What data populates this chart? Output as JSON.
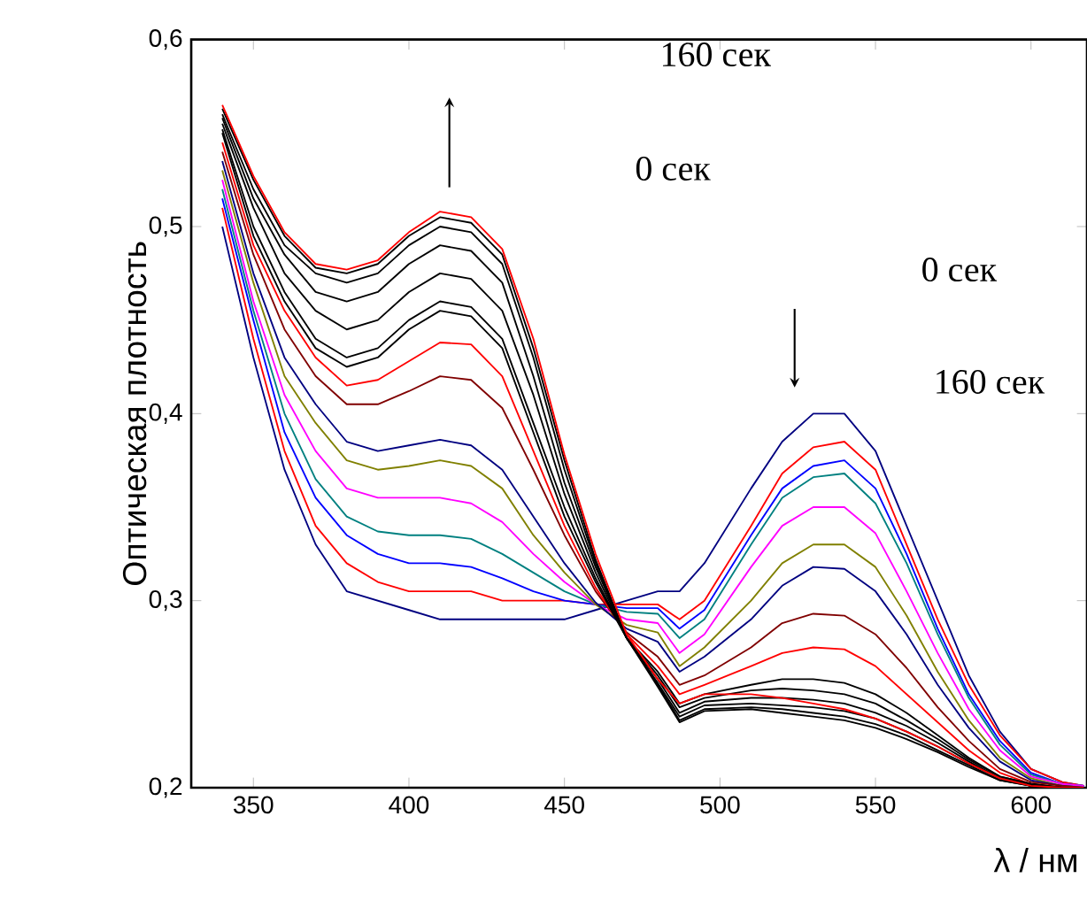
{
  "chart_data": {
    "type": "line",
    "xlabel": "λ / нм",
    "ylabel": "Оптическая плотность",
    "annotations": [
      "160 сек",
      "0 сек",
      "0 сек",
      "160 сек"
    ],
    "xlim": [
      330,
      618
    ],
    "ylim": [
      0.2,
      0.6
    ],
    "xticks": [
      350,
      400,
      450,
      500,
      550,
      600
    ],
    "yticks": [
      {
        "value": 0.2,
        "label": "0,2"
      },
      {
        "value": 0.3,
        "label": "0,3"
      },
      {
        "value": 0.4,
        "label": "0,4"
      },
      {
        "value": 0.5,
        "label": "0,5"
      },
      {
        "value": 0.6,
        "label": "0,6"
      }
    ],
    "x": [
      340,
      350,
      360,
      370,
      380,
      390,
      400,
      410,
      420,
      430,
      440,
      450,
      460,
      470,
      480,
      487,
      495,
      510,
      520,
      530,
      540,
      550,
      560,
      570,
      580,
      590,
      600,
      610,
      617
    ],
    "series": [
      {
        "color": "#000080",
        "values": [
          0.5,
          0.43,
          0.37,
          0.33,
          0.305,
          0.3,
          0.295,
          0.29,
          0.29,
          0.29,
          0.29,
          0.29,
          0.295,
          0.3,
          0.305,
          0.305,
          0.32,
          0.36,
          0.385,
          0.4,
          0.4,
          0.38,
          0.34,
          0.3,
          0.26,
          0.23,
          0.21,
          0.203,
          0.201
        ]
      },
      {
        "color": "#ff0000",
        "values": [
          0.51,
          0.44,
          0.38,
          0.34,
          0.32,
          0.31,
          0.305,
          0.305,
          0.305,
          0.3,
          0.3,
          0.3,
          0.298,
          0.298,
          0.298,
          0.29,
          0.3,
          0.34,
          0.368,
          0.382,
          0.385,
          0.37,
          0.33,
          0.29,
          0.255,
          0.228,
          0.21,
          0.203,
          0.201
        ]
      },
      {
        "color": "#0000ff",
        "values": [
          0.515,
          0.45,
          0.39,
          0.355,
          0.335,
          0.325,
          0.32,
          0.32,
          0.318,
          0.312,
          0.305,
          0.3,
          0.298,
          0.296,
          0.296,
          0.285,
          0.295,
          0.335,
          0.36,
          0.372,
          0.375,
          0.36,
          0.325,
          0.285,
          0.25,
          0.225,
          0.208,
          0.202,
          0.201
        ]
      },
      {
        "color": "#008080",
        "values": [
          0.52,
          0.455,
          0.4,
          0.365,
          0.345,
          0.337,
          0.335,
          0.335,
          0.333,
          0.325,
          0.315,
          0.305,
          0.298,
          0.294,
          0.293,
          0.28,
          0.29,
          0.33,
          0.355,
          0.366,
          0.368,
          0.352,
          0.32,
          0.282,
          0.248,
          0.223,
          0.207,
          0.202,
          0.201
        ]
      },
      {
        "color": "#ff00ff",
        "values": [
          0.525,
          0.46,
          0.41,
          0.38,
          0.36,
          0.355,
          0.355,
          0.355,
          0.352,
          0.342,
          0.325,
          0.31,
          0.298,
          0.29,
          0.288,
          0.272,
          0.282,
          0.318,
          0.34,
          0.35,
          0.35,
          0.336,
          0.305,
          0.272,
          0.242,
          0.22,
          0.206,
          0.202,
          0.201
        ]
      },
      {
        "color": "#808000",
        "values": [
          0.53,
          0.47,
          0.42,
          0.395,
          0.375,
          0.37,
          0.372,
          0.375,
          0.372,
          0.36,
          0.335,
          0.315,
          0.298,
          0.287,
          0.283,
          0.265,
          0.275,
          0.3,
          0.32,
          0.33,
          0.33,
          0.318,
          0.292,
          0.262,
          0.236,
          0.216,
          0.205,
          0.201,
          0.2
        ]
      },
      {
        "color": "#000080",
        "values": [
          0.535,
          0.475,
          0.43,
          0.405,
          0.385,
          0.38,
          0.383,
          0.386,
          0.383,
          0.37,
          0.345,
          0.32,
          0.299,
          0.285,
          0.278,
          0.262,
          0.27,
          0.29,
          0.308,
          0.318,
          0.317,
          0.305,
          0.282,
          0.255,
          0.232,
          0.214,
          0.204,
          0.201,
          0.2
        ]
      },
      {
        "color": "#800000",
        "values": [
          0.54,
          0.485,
          0.445,
          0.42,
          0.405,
          0.405,
          0.412,
          0.42,
          0.418,
          0.403,
          0.37,
          0.335,
          0.305,
          0.283,
          0.27,
          0.255,
          0.26,
          0.275,
          0.288,
          0.293,
          0.292,
          0.282,
          0.264,
          0.243,
          0.225,
          0.21,
          0.203,
          0.201,
          0.2
        ]
      },
      {
        "color": "#ff0000",
        "values": [
          0.545,
          0.49,
          0.455,
          0.43,
          0.415,
          0.418,
          0.428,
          0.438,
          0.437,
          0.42,
          0.38,
          0.34,
          0.307,
          0.282,
          0.265,
          0.25,
          0.255,
          0.265,
          0.272,
          0.275,
          0.274,
          0.265,
          0.25,
          0.235,
          0.22,
          0.208,
          0.202,
          0.2,
          0.2
        ]
      },
      {
        "color": "#000000",
        "values": [
          0.55,
          0.495,
          0.46,
          0.435,
          0.425,
          0.43,
          0.445,
          0.455,
          0.452,
          0.435,
          0.39,
          0.345,
          0.31,
          0.28,
          0.262,
          0.245,
          0.25,
          0.255,
          0.258,
          0.258,
          0.256,
          0.25,
          0.24,
          0.228,
          0.216,
          0.206,
          0.202,
          0.2,
          0.2
        ]
      },
      {
        "color": "#000000",
        "values": [
          0.552,
          0.5,
          0.465,
          0.44,
          0.43,
          0.435,
          0.45,
          0.46,
          0.457,
          0.44,
          0.395,
          0.35,
          0.312,
          0.28,
          0.26,
          0.243,
          0.248,
          0.252,
          0.253,
          0.252,
          0.25,
          0.245,
          0.236,
          0.226,
          0.215,
          0.206,
          0.202,
          0.2,
          0.2
        ]
      },
      {
        "color": "#000000",
        "values": [
          0.555,
          0.51,
          0.475,
          0.455,
          0.445,
          0.45,
          0.465,
          0.475,
          0.472,
          0.455,
          0.41,
          0.357,
          0.315,
          0.28,
          0.258,
          0.24,
          0.246,
          0.248,
          0.248,
          0.247,
          0.245,
          0.24,
          0.233,
          0.224,
          0.214,
          0.205,
          0.201,
          0.2,
          0.2
        ]
      },
      {
        "color": "#000000",
        "values": [
          0.558,
          0.515,
          0.485,
          0.465,
          0.46,
          0.465,
          0.48,
          0.49,
          0.487,
          0.47,
          0.42,
          0.363,
          0.318,
          0.28,
          0.256,
          0.238,
          0.244,
          0.245,
          0.244,
          0.243,
          0.241,
          0.237,
          0.23,
          0.222,
          0.213,
          0.205,
          0.201,
          0.2,
          0.2
        ]
      },
      {
        "color": "#000000",
        "values": [
          0.56,
          0.52,
          0.49,
          0.475,
          0.47,
          0.475,
          0.49,
          0.5,
          0.497,
          0.48,
          0.43,
          0.37,
          0.32,
          0.28,
          0.255,
          0.236,
          0.242,
          0.243,
          0.242,
          0.24,
          0.238,
          0.234,
          0.228,
          0.22,
          0.212,
          0.204,
          0.201,
          0.2,
          0.2
        ]
      },
      {
        "color": "#000000",
        "values": [
          0.563,
          0.525,
          0.495,
          0.478,
          0.475,
          0.48,
          0.495,
          0.505,
          0.502,
          0.485,
          0.435,
          0.375,
          0.322,
          0.28,
          0.254,
          0.235,
          0.241,
          0.242,
          0.24,
          0.238,
          0.236,
          0.232,
          0.226,
          0.219,
          0.211,
          0.204,
          0.201,
          0.2,
          0.2
        ]
      },
      {
        "color": "#ff0000",
        "values": [
          0.565,
          0.527,
          0.497,
          0.48,
          0.477,
          0.482,
          0.497,
          0.508,
          0.505,
          0.488,
          0.44,
          0.378,
          0.325,
          0.282,
          0.258,
          0.245,
          0.25,
          0.25,
          0.248,
          0.245,
          0.242,
          0.237,
          0.23,
          0.222,
          0.213,
          0.205,
          0.201,
          0.2,
          0.2
        ]
      }
    ]
  }
}
